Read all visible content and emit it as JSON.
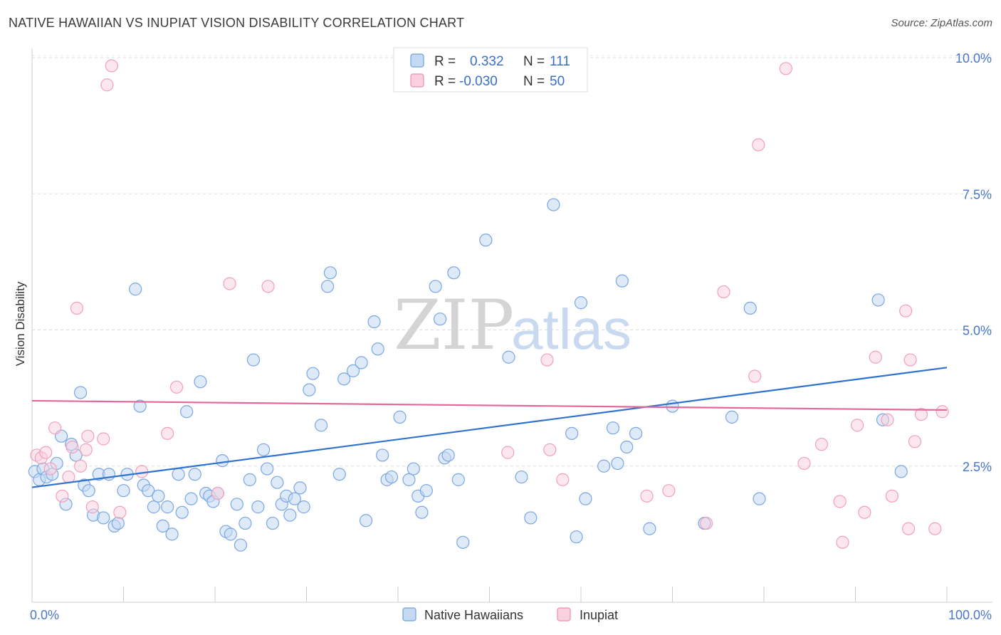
{
  "header": {
    "title": "NATIVE HAWAIIAN VS INUPIAT VISION DISABILITY CORRELATION CHART",
    "source": "Source: ZipAtlas.com"
  },
  "watermark": {
    "zip": "ZIP",
    "atlas": "atlas"
  },
  "legend_top": {
    "rows": [
      {
        "r_label": "R =",
        "r_value": "0.332",
        "n_label": "N =",
        "n_value": "111",
        "color": "#6fa0e0"
      },
      {
        "r_label": "R =",
        "r_value": "-0.030",
        "n_label": "N =",
        "n_value": "50",
        "color": "#ee8fb0"
      }
    ]
  },
  "legend_bottom": {
    "items": [
      {
        "label": "Native Hawaiians",
        "color": "#6fa0e0"
      },
      {
        "label": "Inupiat",
        "color": "#ee8fb0"
      }
    ]
  },
  "chart_data": {
    "type": "scatter",
    "ylabel": "Vision Disability",
    "xlim": [
      0,
      100
    ],
    "ylim": [
      0,
      10.5
    ],
    "x_tick_labels": [
      {
        "value": 0,
        "label": "0.0%"
      },
      {
        "value": 100,
        "label": "100.0%"
      }
    ],
    "y_tick_labels": [
      {
        "value": 2.5,
        "label": "2.5%"
      },
      {
        "value": 5.0,
        "label": "5.0%"
      },
      {
        "value": 7.5,
        "label": "7.5%"
      },
      {
        "value": 10.0,
        "label": "10.0%"
      }
    ],
    "x_minor_ticks": [
      0,
      10,
      20,
      30,
      40,
      50,
      60,
      70,
      80,
      90,
      100
    ],
    "series": [
      {
        "name": "Native Hawaiians",
        "color": "#6fa0e0",
        "trend": {
          "x": [
            0,
            100
          ],
          "y": [
            2.11,
            4.31
          ]
        },
        "points": [
          [
            0.3,
            2.4
          ],
          [
            0.8,
            2.25
          ],
          [
            1.2,
            2.45
          ],
          [
            1.6,
            2.3
          ],
          [
            2.2,
            2.35
          ],
          [
            2.7,
            2.55
          ],
          [
            3.2,
            3.05
          ],
          [
            3.7,
            1.8
          ],
          [
            4.3,
            2.9
          ],
          [
            4.8,
            2.7
          ],
          [
            5.3,
            3.85
          ],
          [
            5.7,
            2.15
          ],
          [
            6.2,
            2.05
          ],
          [
            6.7,
            1.6
          ],
          [
            7.3,
            2.35
          ],
          [
            7.8,
            1.55
          ],
          [
            8.4,
            2.35
          ],
          [
            9.0,
            1.4
          ],
          [
            9.4,
            1.45
          ],
          [
            10.0,
            2.05
          ],
          [
            10.4,
            2.35
          ],
          [
            11.3,
            5.75
          ],
          [
            11.8,
            3.6
          ],
          [
            12.2,
            2.15
          ],
          [
            12.7,
            2.05
          ],
          [
            13.3,
            1.75
          ],
          [
            13.8,
            1.95
          ],
          [
            14.3,
            1.4
          ],
          [
            14.8,
            1.75
          ],
          [
            15.3,
            1.25
          ],
          [
            16.0,
            2.35
          ],
          [
            16.4,
            1.65
          ],
          [
            16.9,
            3.5
          ],
          [
            17.4,
            1.9
          ],
          [
            17.8,
            2.35
          ],
          [
            18.4,
            4.05
          ],
          [
            19.0,
            2.0
          ],
          [
            19.4,
            1.95
          ],
          [
            19.8,
            1.85
          ],
          [
            20.3,
            2.0
          ],
          [
            20.8,
            2.6
          ],
          [
            21.2,
            1.3
          ],
          [
            21.7,
            1.25
          ],
          [
            22.4,
            1.8
          ],
          [
            22.8,
            1.05
          ],
          [
            23.3,
            1.45
          ],
          [
            23.8,
            2.25
          ],
          [
            24.2,
            4.45
          ],
          [
            24.7,
            1.75
          ],
          [
            25.3,
            2.8
          ],
          [
            25.7,
            2.45
          ],
          [
            26.3,
            1.45
          ],
          [
            26.8,
            2.2
          ],
          [
            27.3,
            1.8
          ],
          [
            27.8,
            1.95
          ],
          [
            28.2,
            1.6
          ],
          [
            28.7,
            1.9
          ],
          [
            29.3,
            2.1
          ],
          [
            29.7,
            1.75
          ],
          [
            30.3,
            3.9
          ],
          [
            30.7,
            4.2
          ],
          [
            31.6,
            3.25
          ],
          [
            32.3,
            5.8
          ],
          [
            32.6,
            6.05
          ],
          [
            33.6,
            2.35
          ],
          [
            34.1,
            4.1
          ],
          [
            35.1,
            4.25
          ],
          [
            36.0,
            4.4
          ],
          [
            36.5,
            1.5
          ],
          [
            37.4,
            5.15
          ],
          [
            37.8,
            4.65
          ],
          [
            38.3,
            2.7
          ],
          [
            38.8,
            2.25
          ],
          [
            39.3,
            2.3
          ],
          [
            40.2,
            3.4
          ],
          [
            41.2,
            2.25
          ],
          [
            41.7,
            2.45
          ],
          [
            42.2,
            1.95
          ],
          [
            42.6,
            1.65
          ],
          [
            43.1,
            2.05
          ],
          [
            44.1,
            5.8
          ],
          [
            44.6,
            5.2
          ],
          [
            45.1,
            2.65
          ],
          [
            45.5,
            2.7
          ],
          [
            46.1,
            6.05
          ],
          [
            46.6,
            2.25
          ],
          [
            47.1,
            1.1
          ],
          [
            49.6,
            6.65
          ],
          [
            52.1,
            4.5
          ],
          [
            53.5,
            2.3
          ],
          [
            54.5,
            1.55
          ],
          [
            57.0,
            7.3
          ],
          [
            59.0,
            3.1
          ],
          [
            59.5,
            1.2
          ],
          [
            60.0,
            5.5
          ],
          [
            60.5,
            1.9
          ],
          [
            62.5,
            2.5
          ],
          [
            63.5,
            3.2
          ],
          [
            64.0,
            2.55
          ],
          [
            64.5,
            5.9
          ],
          [
            65.0,
            2.85
          ],
          [
            66.0,
            3.1
          ],
          [
            67.5,
            1.35
          ],
          [
            70.0,
            3.6
          ],
          [
            73.5,
            1.45
          ],
          [
            76.5,
            3.4
          ],
          [
            78.5,
            5.4
          ],
          [
            79.5,
            1.9
          ],
          [
            92.5,
            5.55
          ],
          [
            93.0,
            3.35
          ],
          [
            95.0,
            2.4
          ]
        ]
      },
      {
        "name": "Inupiat",
        "color": "#ee8fb0",
        "trend": {
          "x": [
            0,
            100
          ],
          "y": [
            3.7,
            3.53
          ]
        },
        "points": [
          [
            0.5,
            2.7
          ],
          [
            1.0,
            2.65
          ],
          [
            1.5,
            2.75
          ],
          [
            2.0,
            2.45
          ],
          [
            2.5,
            3.2
          ],
          [
            3.3,
            1.95
          ],
          [
            4.0,
            2.3
          ],
          [
            4.4,
            2.85
          ],
          [
            4.9,
            5.4
          ],
          [
            5.3,
            2.5
          ],
          [
            5.9,
            2.8
          ],
          [
            6.1,
            3.05
          ],
          [
            6.6,
            1.75
          ],
          [
            7.8,
            3.0
          ],
          [
            8.2,
            9.5
          ],
          [
            8.7,
            9.85
          ],
          [
            9.6,
            1.65
          ],
          [
            12.0,
            2.4
          ],
          [
            14.8,
            3.1
          ],
          [
            15.8,
            3.95
          ],
          [
            20.3,
            2.0
          ],
          [
            21.6,
            5.85
          ],
          [
            25.8,
            5.8
          ],
          [
            52.0,
            2.75
          ],
          [
            56.3,
            4.45
          ],
          [
            56.6,
            2.8
          ],
          [
            58.0,
            2.25
          ],
          [
            67.2,
            1.95
          ],
          [
            69.6,
            2.05
          ],
          [
            73.7,
            1.45
          ],
          [
            75.6,
            5.7
          ],
          [
            79.0,
            4.15
          ],
          [
            79.4,
            8.4
          ],
          [
            82.4,
            9.8
          ],
          [
            84.4,
            2.55
          ],
          [
            86.3,
            2.9
          ],
          [
            88.3,
            1.85
          ],
          [
            88.6,
            1.1
          ],
          [
            90.2,
            3.25
          ],
          [
            91.0,
            1.65
          ],
          [
            92.2,
            4.5
          ],
          [
            93.5,
            3.35
          ],
          [
            94.0,
            1.95
          ],
          [
            95.5,
            5.35
          ],
          [
            95.8,
            1.35
          ],
          [
            96.0,
            4.45
          ],
          [
            96.5,
            2.95
          ],
          [
            97.2,
            3.45
          ],
          [
            98.7,
            1.35
          ],
          [
            99.5,
            3.5
          ]
        ]
      }
    ]
  }
}
